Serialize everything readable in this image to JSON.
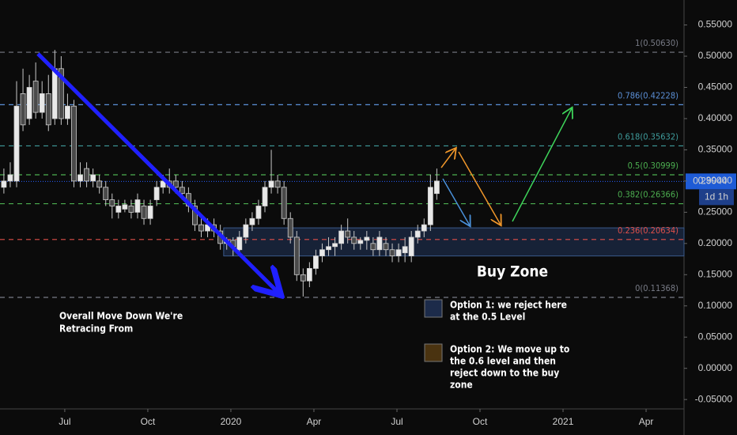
{
  "chart_data": {
    "type": "candlestick",
    "x": [
      -2.2,
      -1.97,
      -1.74,
      -1.51,
      -1.28,
      -1.05,
      -0.82,
      -0.59,
      -0.36,
      -0.13,
      0.1,
      0.33,
      0.56,
      0.79,
      1.02,
      1.25,
      1.48,
      1.71,
      1.94,
      2.17,
      2.4,
      2.63,
      2.86,
      3.09,
      3.32,
      3.55,
      3.78,
      4.01,
      4.24,
      4.47,
      4.7,
      4.93,
      5.16,
      5.39,
      5.62,
      5.85,
      6.08,
      6.31,
      6.54,
      6.77,
      7.0,
      7.23,
      7.46,
      7.69,
      7.92,
      8.15,
      8.38,
      8.61,
      8.84,
      9.07,
      9.3,
      9.53,
      9.76,
      9.99,
      10.22,
      10.45,
      10.68,
      10.91,
      11.14,
      11.37,
      11.6,
      11.83,
      12.06,
      12.29,
      12.52,
      12.75,
      12.98,
      13.21,
      13.44
    ],
    "open": [
      0.29,
      0.3,
      0.3,
      0.44,
      0.4,
      0.46,
      0.41,
      0.44,
      0.4,
      0.48,
      0.4,
      0.42,
      0.3,
      0.32,
      0.3,
      0.3,
      0.29,
      0.27,
      0.25,
      0.255,
      0.26,
      0.25,
      0.26,
      0.24,
      0.27,
      0.29,
      0.3,
      0.3,
      0.29,
      0.28,
      0.26,
      0.23,
      0.22,
      0.23,
      0.22,
      0.2,
      0.205,
      0.19,
      0.21,
      0.23,
      0.24,
      0.26,
      0.29,
      0.3,
      0.29,
      0.24,
      0.21,
      0.15,
      0.14,
      0.16,
      0.18,
      0.19,
      0.195,
      0.2,
      0.22,
      0.21,
      0.2,
      0.205,
      0.2,
      0.19,
      0.2,
      0.19,
      0.18,
      0.185,
      0.18,
      0.21,
      0.22,
      0.23,
      0.28
    ],
    "high": [
      0.32,
      0.33,
      0.46,
      0.48,
      0.47,
      0.49,
      0.46,
      0.47,
      0.51,
      0.5,
      0.44,
      0.43,
      0.33,
      0.33,
      0.32,
      0.31,
      0.3,
      0.28,
      0.27,
      0.27,
      0.27,
      0.28,
      0.27,
      0.27,
      0.3,
      0.31,
      0.32,
      0.31,
      0.3,
      0.29,
      0.27,
      0.24,
      0.24,
      0.24,
      0.23,
      0.21,
      0.21,
      0.22,
      0.24,
      0.25,
      0.27,
      0.3,
      0.35,
      0.31,
      0.3,
      0.25,
      0.22,
      0.16,
      0.17,
      0.19,
      0.2,
      0.21,
      0.21,
      0.23,
      0.24,
      0.22,
      0.21,
      0.22,
      0.21,
      0.22,
      0.21,
      0.2,
      0.2,
      0.21,
      0.22,
      0.23,
      0.24,
      0.31,
      0.32
    ],
    "low": [
      0.28,
      0.29,
      0.29,
      0.38,
      0.39,
      0.4,
      0.4,
      0.38,
      0.39,
      0.39,
      0.39,
      0.29,
      0.29,
      0.29,
      0.29,
      0.28,
      0.26,
      0.24,
      0.24,
      0.25,
      0.24,
      0.24,
      0.23,
      0.23,
      0.26,
      0.28,
      0.28,
      0.28,
      0.27,
      0.25,
      0.22,
      0.21,
      0.21,
      0.21,
      0.19,
      0.19,
      0.18,
      0.18,
      0.2,
      0.22,
      0.23,
      0.25,
      0.28,
      0.28,
      0.23,
      0.2,
      0.14,
      0.115,
      0.13,
      0.15,
      0.17,
      0.18,
      0.18,
      0.19,
      0.2,
      0.19,
      0.19,
      0.19,
      0.18,
      0.18,
      0.18,
      0.17,
      0.17,
      0.17,
      0.17,
      0.2,
      0.21,
      0.22,
      0.27
    ],
    "close": [
      0.3,
      0.31,
      0.42,
      0.39,
      0.45,
      0.41,
      0.44,
      0.39,
      0.48,
      0.4,
      0.42,
      0.3,
      0.31,
      0.3,
      0.31,
      0.29,
      0.27,
      0.26,
      0.26,
      0.262,
      0.25,
      0.27,
      0.24,
      0.26,
      0.29,
      0.3,
      0.29,
      0.29,
      0.28,
      0.26,
      0.23,
      0.22,
      0.23,
      0.22,
      0.2,
      0.205,
      0.195,
      0.21,
      0.23,
      0.24,
      0.26,
      0.29,
      0.3,
      0.29,
      0.24,
      0.21,
      0.15,
      0.14,
      0.16,
      0.18,
      0.19,
      0.195,
      0.2,
      0.22,
      0.21,
      0.2,
      0.205,
      0.21,
      0.19,
      0.21,
      0.19,
      0.18,
      0.19,
      0.195,
      0.21,
      0.22,
      0.23,
      0.29,
      0.3
    ],
    "up_color": "#e8e8e8",
    "down_color": "#4a4a4a",
    "xlim": [
      -2.34,
      22.37
    ],
    "xticks": [
      {
        "value": 0,
        "label": "Jul"
      },
      {
        "value": 3,
        "label": "Oct"
      },
      {
        "value": 6,
        "label": "2020"
      },
      {
        "value": 9,
        "label": "Apr"
      },
      {
        "value": 12,
        "label": "Jul"
      },
      {
        "value": 15,
        "label": "Oct"
      },
      {
        "value": 18,
        "label": "2021"
      },
      {
        "value": 21,
        "label": "Apr"
      }
    ],
    "ylim": [
      -0.065,
      0.59
    ],
    "yticks": [
      {
        "value": 0.55,
        "label": "0.55000"
      },
      {
        "value": 0.5,
        "label": "0.50000"
      },
      {
        "value": 0.45,
        "label": "0.45000"
      },
      {
        "value": 0.4,
        "label": "0.40000"
      },
      {
        "value": 0.35,
        "label": "0.35000"
      },
      {
        "value": 0.3,
        "label": "0.30000"
      },
      {
        "value": 0.25,
        "label": "0.25000"
      },
      {
        "value": 0.2,
        "label": "0.20000"
      },
      {
        "value": 0.15,
        "label": "0.15000"
      },
      {
        "value": 0.1,
        "label": "0.10000"
      },
      {
        "value": 0.05,
        "label": "0.05000"
      },
      {
        "value": 0,
        "label": "0.00000"
      },
      {
        "value": -0.05,
        "label": "-0.05000"
      }
    ],
    "levels": [
      {
        "label": "1(0.50630)",
        "value": 0.5063,
        "color": "#787b86"
      },
      {
        "label": "0.786(0.42228)",
        "value": 0.42228,
        "color": "#5b8fd6"
      },
      {
        "label": "0.618(0.35632)",
        "value": 0.35632,
        "color": "#3f9c9c"
      },
      {
        "label": "0.5(0.30999)",
        "value": 0.30999,
        "color": "#4caf50"
      },
      {
        "label": "0.382(0.26366)",
        "value": 0.26366,
        "color": "#4caf50"
      },
      {
        "label": "0.236(0.20634)",
        "value": 0.20634,
        "color": "#e0504a"
      },
      {
        "label": "0(0.11368)",
        "value": 0.11368,
        "color": "#787b86"
      }
    ],
    "last_price": {
      "value": 0.29944,
      "label": "0.29944"
    },
    "countdown": "1d 1h",
    "buy_zone": {
      "range": [
        0.18,
        0.225
      ],
      "x_start": 5.74,
      "label": "Buy Zone"
    },
    "move_note": [
      "Overall Move Down We're",
      "Retracing From"
    ],
    "options": [
      {
        "color": "#1c2b4a",
        "lines": [
          "Option 1: we reject here",
          "at the 0.5 Level"
        ]
      },
      {
        "color": "#4a3310",
        "lines": [
          "Option 2: We move up to",
          "the 0.6 level and then",
          "reject down to the buy",
          "zone"
        ]
      }
    ]
  }
}
